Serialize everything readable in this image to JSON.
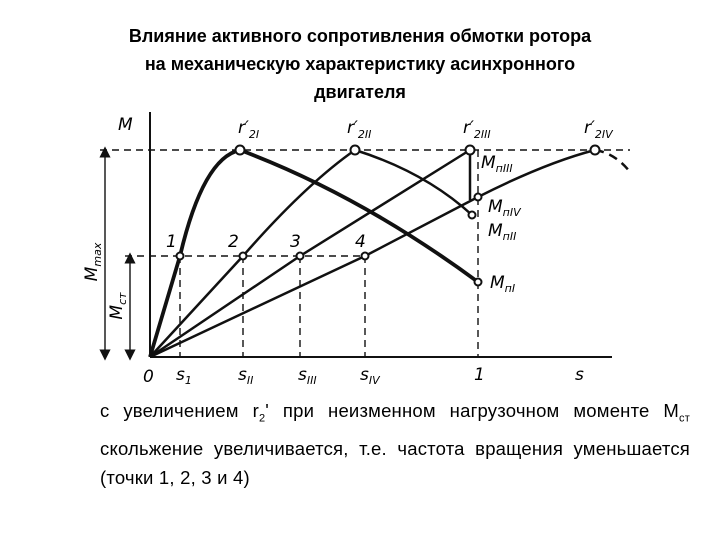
{
  "title": {
    "lines": [
      "Влияние активного сопротивления обмотки ротора",
      "на механическую характеристику асинхронного",
      "двигателя"
    ]
  },
  "diagram": {
    "y_axis_label": "M",
    "x_axis_label": "s",
    "origin_label": "0",
    "unit_slip_label": "1",
    "m_max_label": {
      "main": "M",
      "sub": "max"
    },
    "m_load_label": {
      "main": "M",
      "sub": "ст"
    },
    "curve_labels": [
      {
        "main": "r′",
        "sub": "2I"
      },
      {
        "main": "r′",
        "sub": "2II"
      },
      {
        "main": "r′",
        "sub": "2III"
      },
      {
        "main": "r′",
        "sub": "2IV"
      }
    ],
    "start_torque_labels": [
      {
        "main": "M",
        "sub": "пIII"
      },
      {
        "main": "M",
        "sub": "пIV"
      },
      {
        "main": "M",
        "sub": "пII"
      },
      {
        "main": "M",
        "sub": "пI"
      }
    ],
    "point_labels": [
      "1",
      "2",
      "3",
      "4"
    ],
    "slip_labels": [
      {
        "main": "s",
        "sub": "1"
      },
      {
        "main": "s",
        "sub": "II"
      },
      {
        "main": "s",
        "sub": "III"
      },
      {
        "main": "s",
        "sub": "IV"
      }
    ]
  },
  "body": {
    "text_1": "с увеличением r",
    "sub_1": "2",
    "text_2": "' при неизменном нагрузочном моменте M",
    "sub_2": "ст",
    "text_3": " скольжение увеличивается, т.е. частота вращения уменьшается (точки 1, 2, 3 и 4)"
  }
}
